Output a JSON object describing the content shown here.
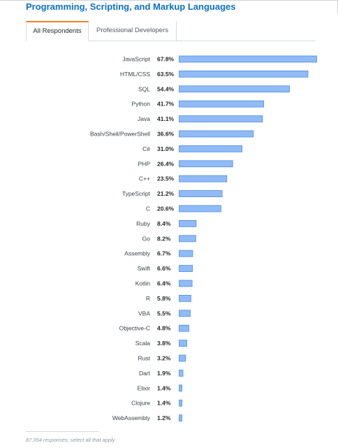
{
  "header": {
    "title": "Programming, Scripting, and Markup Languages"
  },
  "tabs": [
    {
      "label": "All Respondents",
      "active": true
    },
    {
      "label": "Professional Developers",
      "active": false
    }
  ],
  "chart_data": {
    "type": "bar",
    "orientation": "horizontal",
    "value_format": "percent",
    "categories": [
      "JavaScript",
      "HTML/CSS",
      "SQL",
      "Python",
      "Java",
      "Bash/Shell/PowerShell",
      "C#",
      "PHP",
      "C++",
      "TypeScript",
      "C",
      "Ruby",
      "Go",
      "Assembly",
      "Swift",
      "Kotlin",
      "R",
      "VBA",
      "Objective-C",
      "Scala",
      "Rust",
      "Dart",
      "Elixir",
      "Clojure",
      "WebAssembly"
    ],
    "values": [
      67.8,
      63.5,
      54.4,
      41.7,
      41.1,
      36.6,
      31.0,
      26.4,
      23.5,
      21.2,
      20.6,
      8.4,
      8.2,
      6.7,
      6.6,
      6.4,
      5.8,
      5.5,
      4.8,
      3.8,
      3.2,
      1.9,
      1.4,
      1.4,
      1.2
    ],
    "value_labels": [
      "67.8%",
      "63.5%",
      "54.4%",
      "41.7%",
      "41.1%",
      "36.6%",
      "31.0%",
      "26.4%",
      "23.5%",
      "21.2%",
      "20.6%",
      "8.4%",
      "8.2%",
      "6.7%",
      "6.6%",
      "6.4%",
      "5.8%",
      "5.5%",
      "4.8%",
      "3.8%",
      "3.2%",
      "1.9%",
      "1.4%",
      "1.4%",
      "1.2%"
    ],
    "bar_color": "#90bbf6",
    "bar_border_color": "#4d8de6",
    "grid": false,
    "legend": "none"
  },
  "footer": {
    "note": "87,354 responses; select all that apply"
  }
}
